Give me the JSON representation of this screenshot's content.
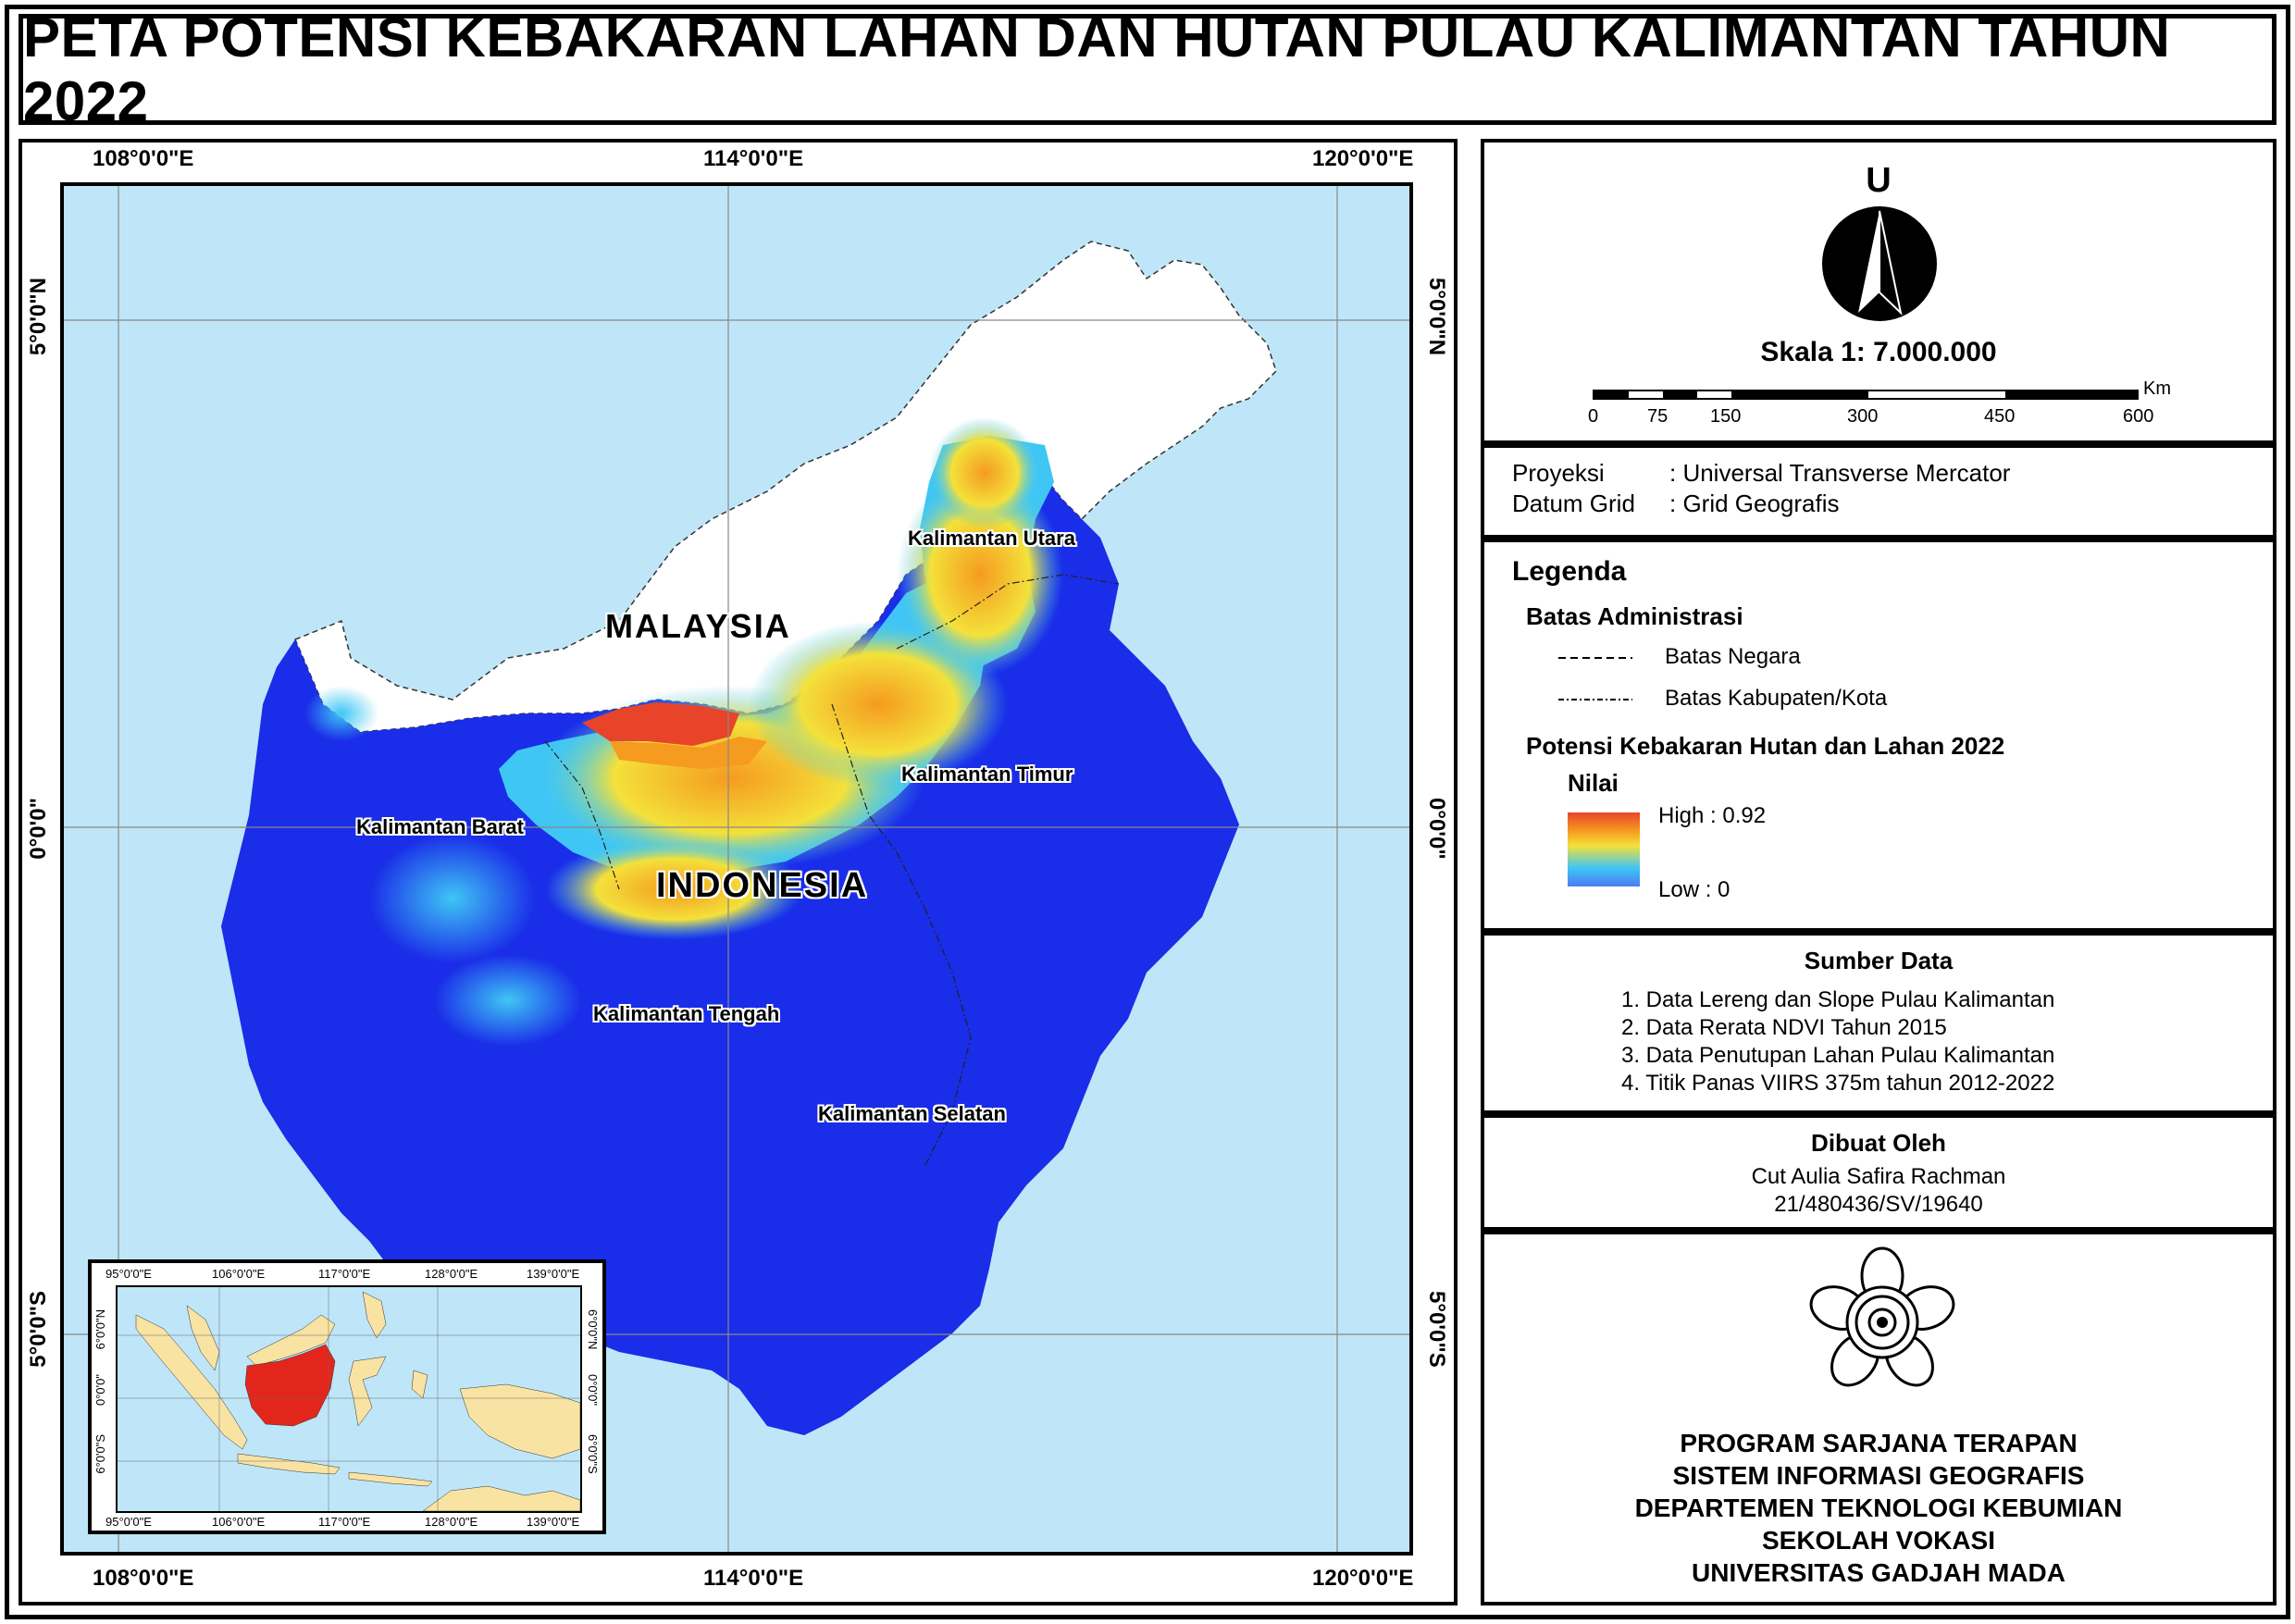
{
  "title": "PETA POTENSI KEBAKARAN LAHAN DAN HUTAN PULAU KALIMANTAN TAHUN 2022",
  "map": {
    "top_longitudes": [
      "108°0'0\"E",
      "114°0'0\"E",
      "120°0'0\"E"
    ],
    "bottom_longitudes": [
      "108°0'0\"E",
      "114°0'0\"E",
      "120°0'0\"E"
    ],
    "latitudes": [
      "5°0'0\"N",
      "0°0'0\"",
      "5°0'0\"S"
    ],
    "labels": {
      "malaysia": "MALAYSIA",
      "indonesia": "INDONESIA",
      "kalbar": "Kalimantan Barat",
      "kaltara": "Kalimantan Utara",
      "kaltim": "Kalimantan Timur",
      "kalteng": "Kalimantan Tengah",
      "kalsel": "Kalimantan Selatan"
    },
    "colors": {
      "sea": "#bfe6f8",
      "land_foreign": "#ffffff",
      "low": "#1a2de8",
      "mid": "#3fc6f5",
      "yellow": "#f4e13a",
      "orange": "#f59b20",
      "high": "#e8442a"
    }
  },
  "inset": {
    "top_longitudes": [
      "95°0'0\"E",
      "106°0'0\"E",
      "117°0'0\"E",
      "128°0'0\"E",
      "139°0'0\"E"
    ],
    "bottom_longitudes": [
      "95°0'0\"E",
      "106°0'0\"E",
      "117°0'0\"E",
      "128°0'0\"E",
      "139°0'0\"E"
    ],
    "latitudes": [
      "6°0'0\"N",
      "0°0'0\"",
      "6°0'0\"S"
    ],
    "highlight_color": "#e3261c",
    "land_color": "#f8e3a3"
  },
  "north": {
    "letter": "U",
    "scale_label": "Skala 1: 7.000.000",
    "scale_unit": "Km",
    "scale_ticks": [
      "0",
      "75",
      "150",
      "300",
      "450",
      "600"
    ]
  },
  "projection": {
    "line1_key": "Proyeksi",
    "line1_val": ": Universal Transverse Mercator",
    "line2_key": "Datum Grid",
    "line2_val": ": Grid Geografis"
  },
  "legend": {
    "title": "Legenda",
    "admin_title": "Batas Administrasi",
    "admin_items": [
      "Batas Negara",
      "Batas Kabupaten/Kota"
    ],
    "potensi_title": "Potensi Kebakaran Hutan dan Lahan 2022",
    "nilai": "Nilai",
    "high": "High : 0.92",
    "low": "Low : 0"
  },
  "sumber": {
    "title": "Sumber Data",
    "items": [
      "1. Data Lereng dan Slope Pulau Kalimantan",
      "2. Data Rerata NDVI Tahun 2015",
      "3. Data Penutupan Lahan Pulau Kalimantan",
      "4. Titik Panas VIIRS 375m tahun 2012-2022"
    ]
  },
  "dibuat": {
    "title": "Dibuat Oleh",
    "name": "Cut Aulia Safira Rachman",
    "nim": "21/480436/SV/19640"
  },
  "institution": {
    "lines": [
      "PROGRAM SARJANA TERAPAN",
      "SISTEM INFORMASI GEOGRAFIS",
      "DEPARTEMEN TEKNOLOGI KEBUMIAN",
      "SEKOLAH VOKASI",
      "UNIVERSITAS GADJAH MADA"
    ]
  }
}
